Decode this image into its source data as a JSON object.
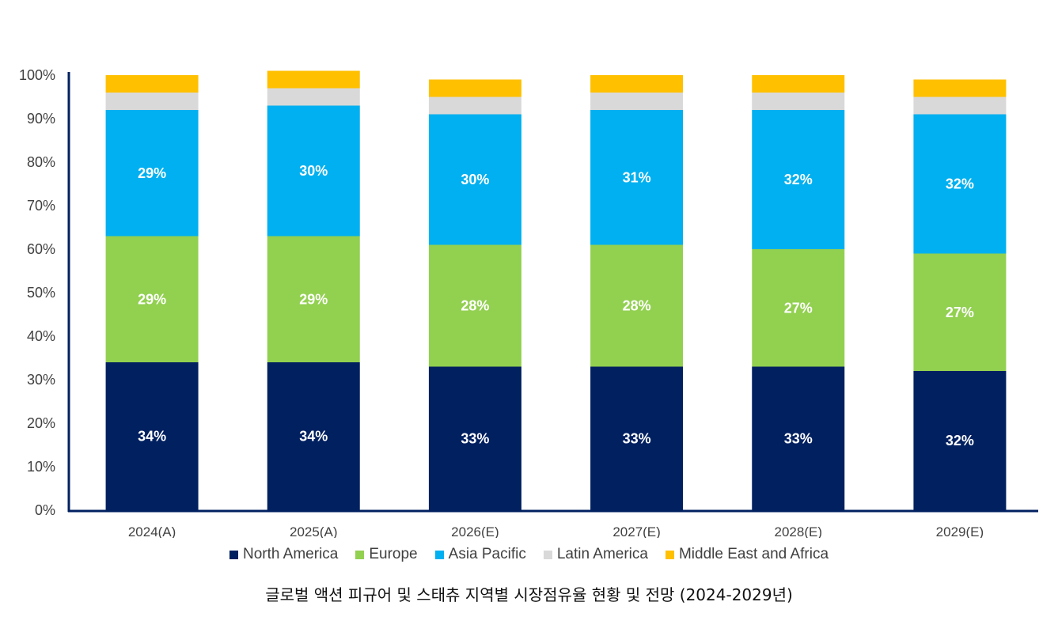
{
  "chart_data": {
    "type": "bar",
    "stacked": true,
    "categories": [
      "2024(A)",
      "2025(A)",
      "2026(E)",
      "2027(E)",
      "2028(E)",
      "2029(E)"
    ],
    "series": [
      {
        "name": "North America",
        "color": "#002060",
        "values": [
          34,
          34,
          33,
          33,
          33,
          32
        ],
        "labels": [
          "34%",
          "34%",
          "33%",
          "33%",
          "33%",
          "32%"
        ]
      },
      {
        "name": "Europe",
        "color": "#92D050",
        "values": [
          29,
          29,
          28,
          28,
          27,
          27
        ],
        "labels": [
          "29%",
          "29%",
          "28%",
          "28%",
          "27%",
          "27%"
        ]
      },
      {
        "name": "Asia Pacific",
        "color": "#00B0F0",
        "values": [
          29,
          30,
          30,
          31,
          32,
          32
        ],
        "labels": [
          "29%",
          "30%",
          "30%",
          "31%",
          "32%",
          "32%"
        ]
      },
      {
        "name": "Latin America",
        "color": "#D9D9D9",
        "values": [
          4,
          4,
          4,
          4,
          4,
          4
        ]
      },
      {
        "name": "Middle East and Africa",
        "color": "#FFC000",
        "values": [
          4,
          4,
          4,
          4,
          4,
          4
        ]
      }
    ],
    "ylim": [
      0,
      100
    ],
    "yticks": [
      "0%",
      "10%",
      "20%",
      "30%",
      "40%",
      "50%",
      "60%",
      "70%",
      "80%",
      "90%",
      "100%"
    ],
    "legend_position": "bottom",
    "grid": false,
    "axis_color": "#002060"
  },
  "caption": "글로벌 액션 피규어 및 스태츄 지역별 시장점유율 현황 및 전망 (2024-2029년)"
}
